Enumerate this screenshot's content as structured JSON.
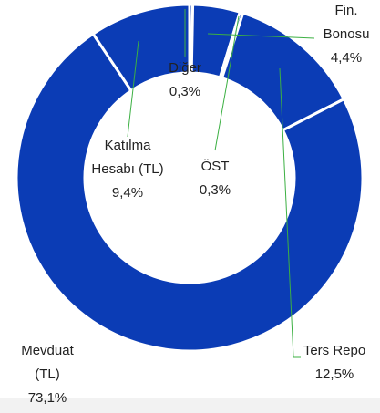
{
  "chart_data": {
    "type": "donut",
    "categories": [
      "Diğer",
      "Fin. Bonosu",
      "ÖST",
      "Ters Repo",
      "Mevduat (TL)",
      "Katılma Hesabı (TL)"
    ],
    "values": [
      0.3,
      4.4,
      0.3,
      12.5,
      73.1,
      9.4
    ],
    "value_labels": [
      "0,3%",
      "4,4%",
      "0,3%",
      "12,5%",
      "73,1%",
      "9,4%"
    ],
    "colors": [
      "#0b3cb5",
      "#0b3cb5",
      "#0b3cb5",
      "#0b3cb5",
      "#0b3cb5",
      "#0b3cb5"
    ]
  }
}
